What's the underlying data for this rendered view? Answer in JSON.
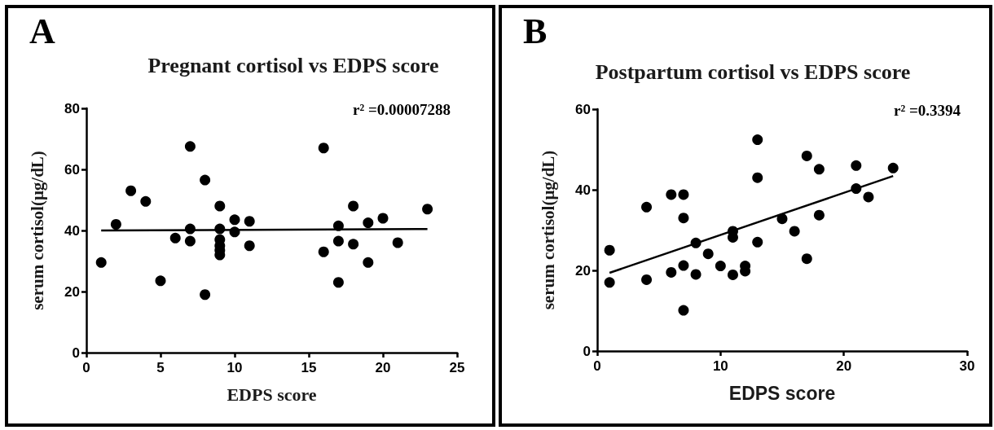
{
  "chart_data": [
    {
      "type": "scatter",
      "title": "Pregnant cortisol vs EDPS score",
      "xlabel": "EDPS score",
      "ylabel": "serum cortisol(μg/dL)",
      "annotations": [
        "A",
        "r² =0.00007288"
      ],
      "xlim": [
        0,
        25
      ],
      "ylim": [
        0,
        80
      ],
      "xticks": [
        0,
        5,
        10,
        15,
        20,
        25
      ],
      "yticks": [
        0,
        20,
        40,
        60,
        80
      ],
      "marker": "circle",
      "series": [
        {
          "color": "#000000",
          "x": [
            1,
            2,
            3,
            4,
            5,
            6,
            7,
            7,
            7,
            8,
            8,
            9,
            9,
            9,
            9,
            9,
            9,
            10,
            10,
            11,
            11,
            16,
            16,
            17,
            17,
            17,
            18,
            18,
            19,
            19,
            20,
            21,
            23
          ],
          "values": [
            29.5,
            42,
            53,
            49.5,
            23.5,
            37.5,
            67.5,
            40.5,
            36.5,
            56.5,
            19,
            48,
            40.5,
            37,
            35,
            33.5,
            32,
            43.5,
            39.5,
            43,
            35,
            67,
            33,
            41.5,
            36.5,
            23,
            48,
            35.5,
            42.5,
            29.5,
            44,
            36,
            47
          ]
        },
        {
          "type": "line",
          "marker": "none",
          "color": "#000000",
          "x": [
            1,
            23
          ],
          "values": [
            40,
            40.5
          ]
        }
      ]
    },
    {
      "type": "scatter",
      "title": "Postpartum cortisol vs EDPS score",
      "xlabel": "EDPS score",
      "ylabel": "serum cortisol(μg/dL)",
      "annotations": [
        "B",
        "r² =0.3394"
      ],
      "xlim": [
        0,
        30
      ],
      "ylim": [
        0,
        60
      ],
      "xticks": [
        0,
        10,
        20,
        30
      ],
      "yticks": [
        0,
        20,
        40,
        60
      ],
      "marker": "circle",
      "series": [
        {
          "color": "#000000",
          "x": [
            1,
            1,
            4,
            4,
            6,
            6,
            7,
            7,
            7,
            7,
            8,
            8,
            9,
            10,
            11,
            11,
            11,
            12,
            12,
            13,
            13,
            13,
            15,
            16,
            17,
            17,
            18,
            18,
            21,
            21,
            22,
            24
          ],
          "values": [
            25,
            17,
            35.7,
            17.7,
            38.8,
            19.5,
            38.8,
            33,
            21.2,
            10.1,
            26.8,
            19,
            24.1,
            21.1,
            29.7,
            28.2,
            18.9,
            21.1,
            19.8,
            52.4,
            43,
            27,
            32.8,
            29.7,
            48.4,
            22.9,
            45.1,
            33.7,
            46,
            40.3,
            38.2,
            45.4
          ]
        },
        {
          "type": "line",
          "marker": "none",
          "color": "#000000",
          "x": [
            1,
            24
          ],
          "values": [
            19.4,
            43.4
          ]
        }
      ]
    }
  ]
}
